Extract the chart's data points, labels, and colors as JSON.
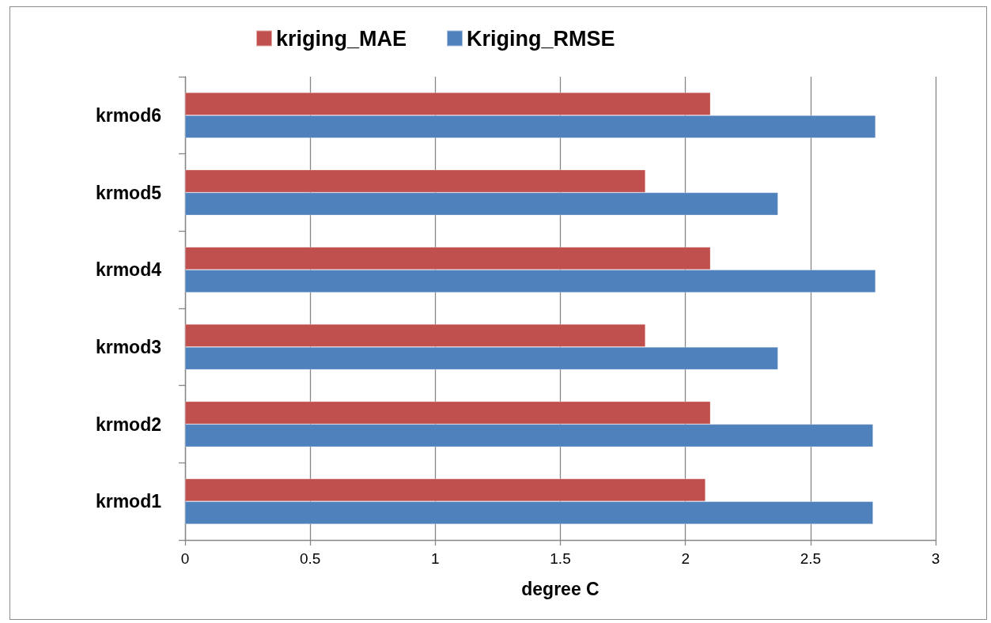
{
  "chart_data": {
    "type": "bar",
    "orientation": "horizontal",
    "xlabel": "degree C",
    "categories": [
      "krmod6",
      "krmod5",
      "krmod4",
      "krmod3",
      "krmod2",
      "krmod1"
    ],
    "series": [
      {
        "name": "kriging_MAE",
        "color": "#c0504d",
        "values": [
          2.1,
          1.84,
          2.1,
          1.84,
          2.1,
          2.08
        ]
      },
      {
        "name": "Kriging_RMSE",
        "color": "#4f81bd",
        "values": [
          2.76,
          2.37,
          2.76,
          2.37,
          2.75,
          2.75
        ]
      }
    ],
    "xlim": [
      0,
      3
    ],
    "xticks": [
      0,
      0.5,
      1,
      1.5,
      2,
      2.5,
      3
    ],
    "grid": "x",
    "legend": "top"
  }
}
